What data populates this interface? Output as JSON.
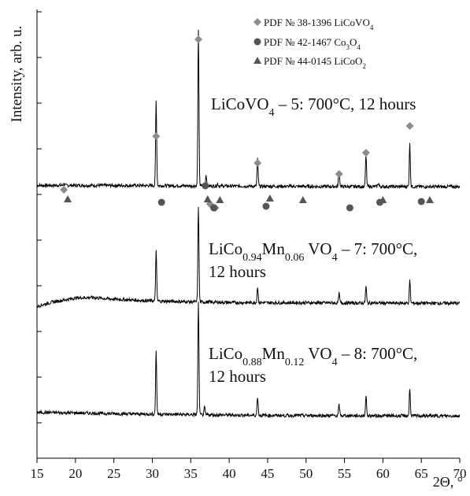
{
  "chart_data": {
    "type": "line",
    "title": "",
    "xlabel": "2Θ, °",
    "ylabel": "Intensity, arb. u.",
    "xlim": [
      15,
      70
    ],
    "xticks": [
      15,
      20,
      25,
      30,
      35,
      40,
      45,
      50,
      55,
      60,
      65,
      70
    ],
    "grid": false,
    "legend_position": "top-right",
    "legend": [
      {
        "label": "PDF № 38-1396 LiCoVO",
        "sub": "4",
        "marker": "diamond",
        "color": "#808080"
      },
      {
        "label": "PDF № 42-1467 Co",
        "sub1": "3",
        "mid": "O",
        "sub2": "4",
        "marker": "circle",
        "color": "#555555"
      },
      {
        "label": "PDF № 44-0145 LiCoO",
        "sub": "2",
        "marker": "triangle",
        "color": "#555555"
      }
    ],
    "series": [
      {
        "label_parts": [
          "LiCoVO",
          "4",
          " – 5: 700°C, 12 hours"
        ],
        "background": [
          [
            15,
            0.97
          ],
          [
            20,
            0.97
          ],
          [
            25,
            0.96
          ],
          [
            30,
            0.95
          ],
          [
            35,
            0.93
          ],
          [
            40,
            0.91
          ],
          [
            45,
            0.89
          ],
          [
            50,
            0.88
          ],
          [
            55,
            0.87
          ],
          [
            60,
            0.87
          ],
          [
            65,
            0.86
          ],
          [
            70,
            0.86
          ]
        ],
        "peaks": [
          [
            18.5,
            0.15
          ],
          [
            30.5,
            7.2
          ],
          [
            36.0,
            13.1
          ],
          [
            37.0,
            0.95
          ],
          [
            38.5,
            0.2
          ],
          [
            43.7,
            2.3
          ],
          [
            54.3,
            1.45
          ],
          [
            57.8,
            2.6
          ],
          [
            59.4,
            0.3
          ],
          [
            63.5,
            3.6
          ]
        ]
      },
      {
        "label_parts": [
          "LiCo",
          "0.94",
          "Mn",
          "0.06",
          " VO",
          "4",
          " – 7: 700°C,",
          "12 hours"
        ],
        "background": [
          [
            15,
            0.0
          ],
          [
            17,
            0.35
          ],
          [
            20,
            0.7
          ],
          [
            22,
            0.75
          ],
          [
            25,
            0.6
          ],
          [
            30,
            0.45
          ],
          [
            35,
            0.38
          ],
          [
            40,
            0.32
          ],
          [
            45,
            0.3
          ],
          [
            50,
            0.3
          ],
          [
            55,
            0.28
          ],
          [
            60,
            0.27
          ],
          [
            65,
            0.26
          ],
          [
            70,
            0.26
          ]
        ],
        "peaks": [
          [
            30.5,
            4.25
          ],
          [
            36.0,
            8.1
          ],
          [
            43.7,
            1.35
          ],
          [
            54.3,
            0.8
          ],
          [
            57.8,
            1.4
          ],
          [
            63.5,
            1.9
          ]
        ]
      },
      {
        "label_parts": [
          "LiCo",
          "0.88",
          "Mn",
          "0.12",
          " VO",
          "4",
          " – 8: 700°C,",
          "12 hours"
        ],
        "background": [
          [
            15,
            0.55
          ],
          [
            20,
            0.5
          ],
          [
            25,
            0.44
          ],
          [
            30,
            0.4
          ],
          [
            35,
            0.36
          ],
          [
            40,
            0.32
          ],
          [
            45,
            0.29
          ],
          [
            50,
            0.28
          ],
          [
            55,
            0.27
          ],
          [
            60,
            0.26
          ],
          [
            65,
            0.25
          ],
          [
            70,
            0.25
          ]
        ],
        "peaks": [
          [
            30.5,
            5.3
          ],
          [
            36.0,
            9.5
          ],
          [
            36.8,
            0.6
          ],
          [
            43.7,
            1.6
          ],
          [
            54.3,
            0.9
          ],
          [
            57.8,
            1.7
          ],
          [
            63.5,
            2.3
          ]
        ]
      }
    ],
    "markers": [
      {
        "type": "diamond",
        "x": [
          18.5,
          30.5,
          36.0,
          43.7,
          54.3,
          57.8,
          63.5,
          37.5,
          38.2
        ]
      },
      {
        "type": "circle",
        "x": [
          31.2,
          36.9,
          44.8,
          55.7,
          59.6,
          65.0,
          38.0
        ]
      },
      {
        "type": "triangle",
        "x": [
          19.0,
          37.2,
          38.8,
          45.3,
          49.6,
          60.0,
          66.1
        ]
      }
    ]
  }
}
